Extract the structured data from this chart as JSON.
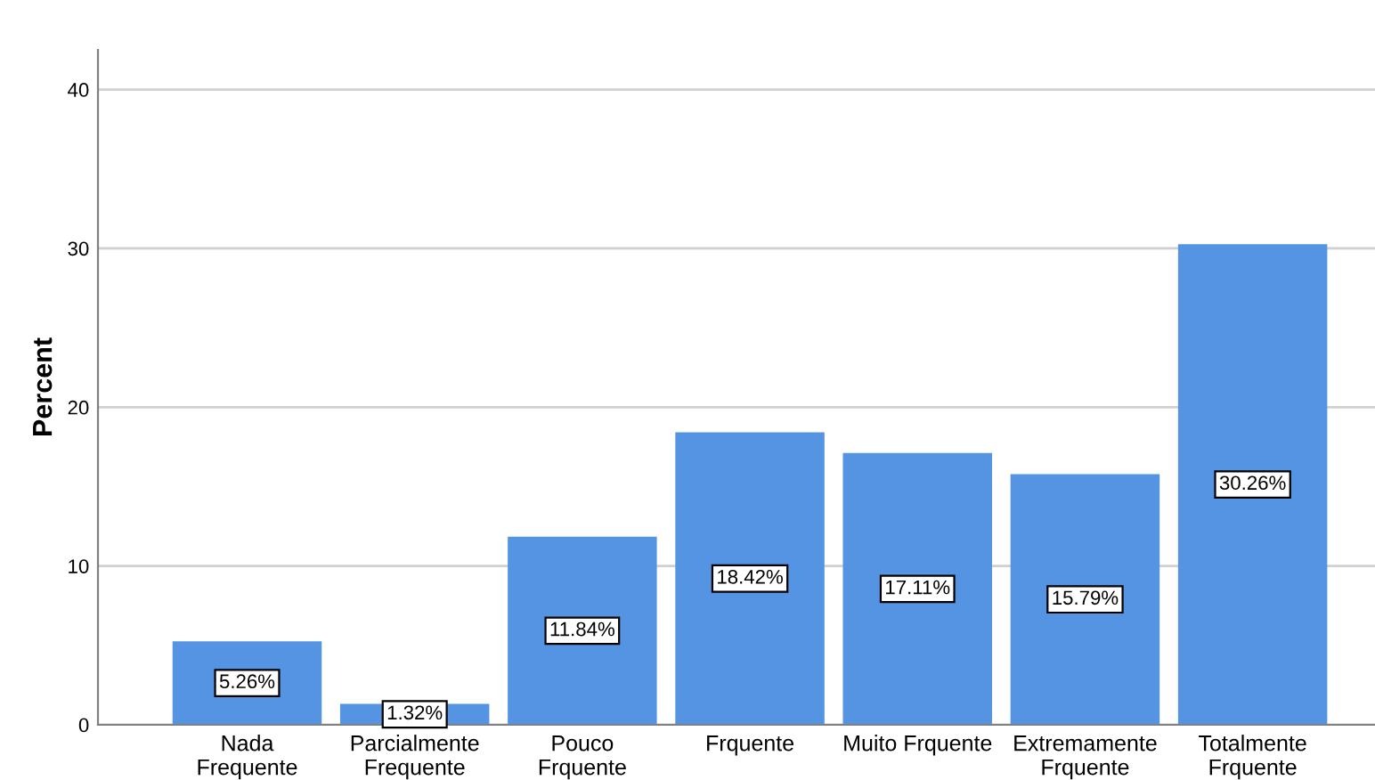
{
  "chart_data": {
    "type": "bar",
    "ylabel": "Percent",
    "categories": [
      "Nada\nFrequente",
      "Parcialmente\nFrequente",
      "Pouco\nFrquente",
      "Frquente",
      "Muito Frquente",
      "Extremamente\nFrquente",
      "Totalmente\nFrquente"
    ],
    "values": [
      5.26,
      1.32,
      11.84,
      18.42,
      17.11,
      15.79,
      30.26
    ],
    "value_labels": [
      "5.26%",
      "1.32%",
      "11.84%",
      "18.42%",
      "17.11%",
      "15.79%",
      "30.26%"
    ],
    "color": "#5594e3",
    "ylim": [
      0,
      42.5
    ],
    "yticks": [
      0,
      10,
      20,
      30,
      40
    ],
    "grid": "y"
  }
}
